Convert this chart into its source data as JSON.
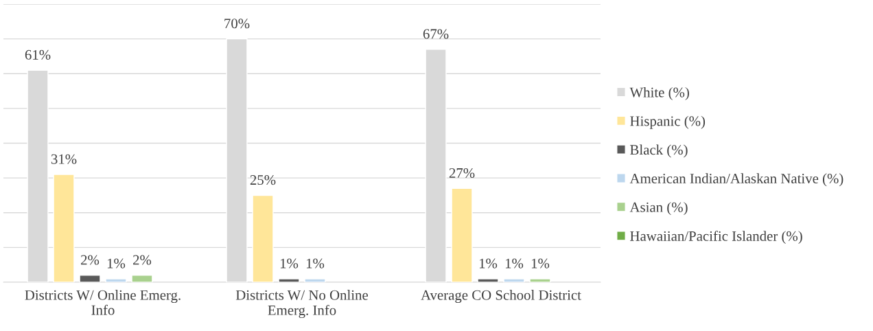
{
  "chart_data": {
    "type": "bar",
    "categories": [
      "Districts W/ Online Emerg.\nInfo",
      "Districts W/ No Online\nEmerg. Info",
      "Average CO School District"
    ],
    "series": [
      {
        "name": "White (%)",
        "color": "#d9d9d9",
        "values": [
          61,
          70,
          67
        ],
        "value_labels": [
          "61%",
          "70%",
          "67%"
        ]
      },
      {
        "name": "Hispanic (%)",
        "color": "#ffe699",
        "values": [
          31,
          25,
          27
        ],
        "value_labels": [
          "31%",
          "25%",
          "27%"
        ]
      },
      {
        "name": "Black (%)",
        "color": "#595959",
        "values": [
          2,
          1,
          1
        ],
        "value_labels": [
          "2%",
          "1%",
          "1%"
        ]
      },
      {
        "name": "American Indian/Alaskan Native (%)",
        "color": "#bdd7ee",
        "values": [
          1,
          1,
          1
        ],
        "value_labels": [
          "1%",
          "1%",
          "1%"
        ]
      },
      {
        "name": "Asian (%)",
        "color": "#a9d18e",
        "values": [
          2,
          null,
          1
        ],
        "value_labels": [
          "2%",
          null,
          "1%"
        ]
      },
      {
        "name": "Hawaiian/Pacific Islander (%)",
        "color": "#70ad47",
        "values": [
          null,
          null,
          null
        ],
        "value_labels": [
          null,
          null,
          null
        ]
      }
    ],
    "ylim": [
      0,
      80
    ],
    "yticks": [
      {
        "value": 0,
        "label": null
      },
      {
        "value": 10,
        "label": null
      },
      {
        "value": 20,
        "label": null
      },
      {
        "value": 30,
        "label": null
      },
      {
        "value": 40,
        "label": null
      },
      {
        "value": 50,
        "label": null
      },
      {
        "value": 60,
        "label": null
      },
      {
        "value": 70,
        "label": null
      },
      {
        "value": 80,
        "label": null
      }
    ],
    "grid": "y",
    "legend": "right",
    "tick_labels": "x"
  }
}
